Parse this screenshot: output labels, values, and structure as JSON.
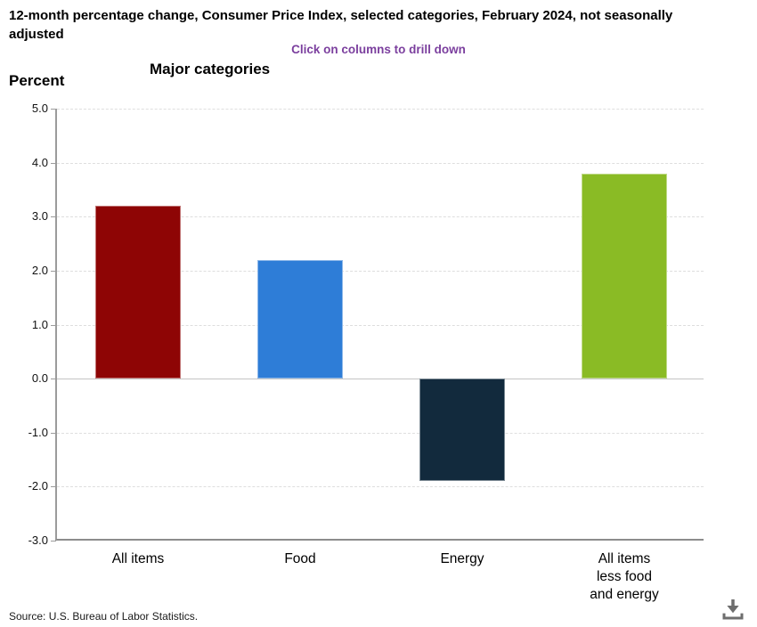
{
  "header": {
    "title": "12-month percentage change, Consumer Price Index, selected categories, February 2024, not seasonally adjusted",
    "subtitle": "Click on columns to drill down"
  },
  "chart": {
    "title": "Major categories",
    "unit_label": "Percent"
  },
  "chart_data": {
    "type": "bar",
    "title": "Major categories",
    "ylabel": "Percent",
    "categories": [
      "All items",
      "Food",
      "Energy",
      "All items\nless food\nand energy"
    ],
    "values": [
      3.2,
      2.2,
      -1.9,
      3.8
    ],
    "colors": [
      "#8E0505",
      "#2E7DD7",
      "#122A3D",
      "#8ABB25"
    ],
    "ylim": [
      -3.0,
      5.0
    ],
    "ytick_step": 1.0,
    "ytick_labels": [
      "5.0",
      "4.0",
      "3.0",
      "2.0",
      "1.0",
      "0.0",
      "-1.0",
      "-2.0",
      "-3.0"
    ],
    "grid": "horizontal-dashed",
    "legend": "none"
  },
  "footer": {
    "source": "Source: U.S. Bureau of Labor Statistics.",
    "colors": {
      "icon_gray": "#6e6e6e",
      "subtitle_purple": "#7B3F9E"
    }
  }
}
